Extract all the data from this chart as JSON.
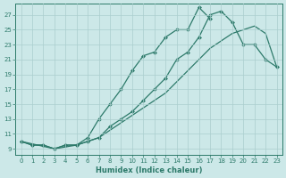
{
  "xlabel": "Humidex (Indice chaleur)",
  "bg_color": "#cce8e8",
  "line_color": "#2d7a6a",
  "grid_color": "#aacece",
  "xlim_min": -0.5,
  "xlim_max": 23.5,
  "ylim_min": 8.2,
  "ylim_max": 28.5,
  "xticks": [
    0,
    1,
    2,
    3,
    4,
    5,
    6,
    7,
    8,
    9,
    10,
    11,
    12,
    13,
    14,
    15,
    16,
    17,
    18,
    19,
    20,
    21,
    22,
    23
  ],
  "yticks": [
    9,
    11,
    13,
    15,
    17,
    19,
    21,
    23,
    25,
    27
  ],
  "line1_x": [
    0,
    1,
    2,
    3,
    4,
    5,
    6,
    7,
    8,
    9,
    10,
    11,
    12,
    13,
    14,
    15,
    16,
    17
  ],
  "line1_y": [
    10,
    9.5,
    9.5,
    9,
    9.5,
    9.5,
    10.5,
    13,
    15,
    17,
    19.5,
    21.5,
    22,
    24,
    25,
    25,
    28,
    26.5
  ],
  "line2_x": [
    0,
    1,
    2,
    3,
    4,
    5,
    6,
    7,
    8,
    9,
    10,
    11,
    12,
    13,
    14,
    15,
    16,
    17,
    18,
    19,
    20,
    21,
    22,
    23
  ],
  "line2_y": [
    10,
    9.5,
    9.5,
    9,
    9.5,
    9.5,
    10,
    10.5,
    12,
    13,
    14,
    15.5,
    17,
    18.5,
    21,
    22,
    24,
    27,
    27.5,
    26,
    23,
    23,
    21,
    20
  ],
  "line3_x": [
    0,
    3,
    5,
    6,
    7,
    8,
    9,
    10,
    11,
    12,
    13,
    14,
    15,
    16,
    17,
    18,
    19,
    20,
    21,
    22,
    23
  ],
  "line3_y": [
    10,
    9,
    9.5,
    10,
    10.5,
    11.5,
    12.5,
    13.5,
    14.5,
    15.5,
    16.5,
    18,
    19.5,
    21,
    22.5,
    23.5,
    24.5,
    25,
    25.5,
    24.5,
    20
  ]
}
